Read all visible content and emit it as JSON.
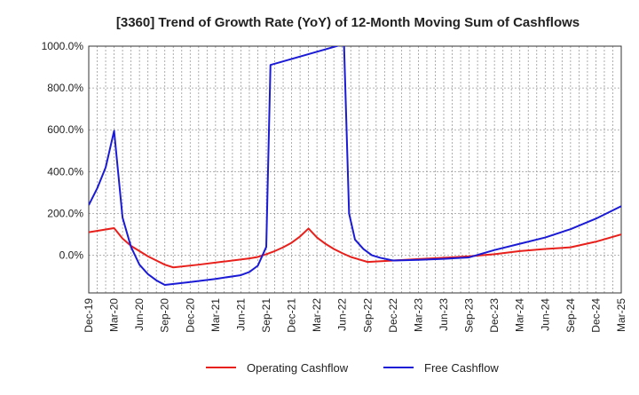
{
  "chart_data": {
    "type": "line",
    "title": "[3360]  Trend of Growth Rate (YoY) of 12-Month Moving Sum of Cashflows",
    "xlabel": "",
    "ylabel": "",
    "ylim": [
      -180,
      1000
    ],
    "yticks": [
      0,
      200,
      400,
      600,
      800,
      1000
    ],
    "ytick_labels": [
      "0.0%",
      "200.0%",
      "400.0%",
      "600.0%",
      "800.0%",
      "1000.0%"
    ],
    "x_tick_labels": [
      "Dec-19",
      "Mar-20",
      "Jun-20",
      "Sep-20",
      "Dec-20",
      "Mar-21",
      "Jun-21",
      "Sep-21",
      "Dec-21",
      "Mar-22",
      "Jun-22",
      "Sep-22",
      "Dec-22",
      "Mar-23",
      "Jun-23",
      "Sep-23",
      "Dec-23",
      "Mar-24",
      "Jun-24",
      "Sep-24",
      "Dec-24",
      "Mar-25"
    ],
    "grid": true,
    "legend_position": "bottom-center",
    "series": [
      {
        "name": "Operating Cashflow",
        "color": "#e8201c",
        "points": [
          [
            0,
            110
          ],
          [
            3,
            130
          ],
          [
            4,
            80
          ],
          [
            5,
            45
          ],
          [
            6,
            20
          ],
          [
            7,
            -5
          ],
          [
            8,
            -25
          ],
          [
            9,
            -45
          ],
          [
            10,
            -58
          ],
          [
            13,
            -45
          ],
          [
            16,
            -30
          ],
          [
            19,
            -15
          ],
          [
            20,
            -8
          ],
          [
            21,
            5
          ],
          [
            22,
            20
          ],
          [
            23,
            38
          ],
          [
            24,
            60
          ],
          [
            25,
            90
          ],
          [
            26,
            128
          ],
          [
            27,
            85
          ],
          [
            28,
            55
          ],
          [
            29,
            30
          ],
          [
            30,
            10
          ],
          [
            31,
            -8
          ],
          [
            32,
            -20
          ],
          [
            33,
            -32
          ],
          [
            36,
            -25
          ],
          [
            39,
            -18
          ],
          [
            42,
            -12
          ],
          [
            45,
            -5
          ],
          [
            48,
            5
          ],
          [
            51,
            20
          ],
          [
            54,
            30
          ],
          [
            57,
            38
          ],
          [
            60,
            65
          ],
          [
            63,
            100
          ],
          [
            64,
            125
          ],
          [
            65,
            95
          ],
          [
            66,
            70
          ],
          [
            67,
            50
          ],
          [
            68,
            30
          ],
          [
            69,
            18
          ],
          [
            70,
            5
          ],
          [
            71,
            -5
          ]
        ]
      },
      {
        "name": "Free Cashflow",
        "color": "#1b1bd6",
        "points": [
          [
            0,
            240
          ],
          [
            1,
            320
          ],
          [
            2,
            420
          ],
          [
            3,
            595
          ],
          [
            4,
            180
          ],
          [
            5,
            40
          ],
          [
            6,
            -45
          ],
          [
            7,
            -90
          ],
          [
            8,
            -120
          ],
          [
            9,
            -142
          ],
          [
            12,
            -128
          ],
          [
            15,
            -113
          ],
          [
            18,
            -95
          ],
          [
            19,
            -80
          ],
          [
            20,
            -50
          ],
          [
            21,
            40
          ],
          [
            21.5,
            910
          ],
          [
            30.2,
            1010
          ],
          [
            30.8,
            200
          ],
          [
            31.5,
            75
          ],
          [
            32.5,
            30
          ],
          [
            33.5,
            0
          ],
          [
            34.5,
            -12
          ],
          [
            36,
            -25
          ],
          [
            39,
            -22
          ],
          [
            42,
            -17
          ],
          [
            45,
            -10
          ],
          [
            48,
            25
          ],
          [
            51,
            55
          ],
          [
            54,
            85
          ],
          [
            57,
            125
          ],
          [
            60,
            175
          ],
          [
            63,
            235
          ],
          [
            64,
            160
          ],
          [
            65,
            100
          ],
          [
            66,
            60
          ],
          [
            67,
            35
          ],
          [
            68,
            15
          ],
          [
            69,
            0
          ],
          [
            70,
            -12
          ],
          [
            71,
            -22
          ]
        ]
      }
    ]
  }
}
